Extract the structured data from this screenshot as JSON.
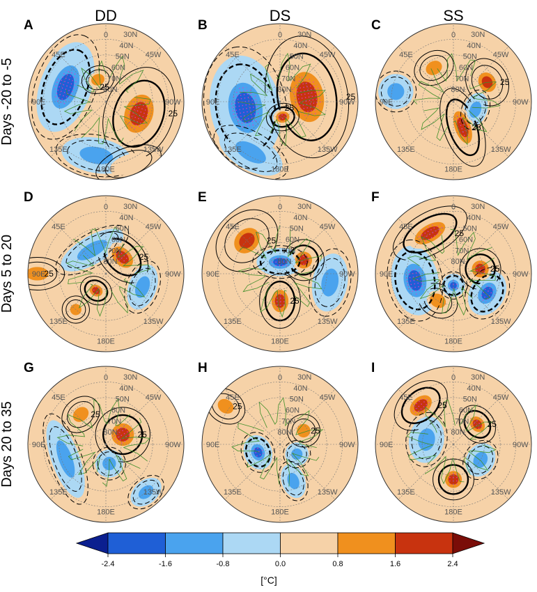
{
  "chart_data": {
    "type": "heatmap",
    "projection": "north-polar-stereographic",
    "column_titles": [
      "DD",
      "DS",
      "SS"
    ],
    "row_titles": [
      "Days -20 to -5",
      "Days 5 to 20",
      "Days 20 to 35"
    ],
    "longitude_labels": [
      "0",
      "45E",
      "90E",
      "135E",
      "180E",
      "135W",
      "90W",
      "45W"
    ],
    "latitude_labels": [
      "30N",
      "40N",
      "50N",
      "60N",
      "70N",
      "80N"
    ],
    "contour_label": "25",
    "colorbar": {
      "ticks": [
        "-2.4",
        "-1.6",
        "-0.8",
        "0.0",
        "0.8",
        "1.6",
        "2.4"
      ],
      "colors": [
        "#0b1f8f",
        "#1f5fd6",
        "#4aa3ee",
        "#acd8f4",
        "#f6d2a8",
        "#f0901e",
        "#c8330f",
        "#7a0d08"
      ],
      "unit": "[°C]"
    },
    "panels": [
      {
        "letter": "A",
        "row": 0,
        "col": 0,
        "blobs": [
          {
            "lon": 250,
            "r": 0.45,
            "rx": 0.35,
            "ry": 0.25,
            "v": 2.1
          },
          {
            "lon": 70,
            "r": 0.55,
            "rx": 0.4,
            "ry": 0.22,
            "v": -1.8
          },
          {
            "lon": 170,
            "r": 0.7,
            "rx": 0.3,
            "ry": 0.15,
            "v": -1.2
          },
          {
            "lon": 20,
            "r": 0.3,
            "rx": 0.12,
            "ry": 0.1,
            "v": 1.4
          },
          {
            "lon": 200,
            "r": 0.85,
            "rx": 0.25,
            "ry": 0.12,
            "v": 0.6
          }
        ]
      },
      {
        "letter": "B",
        "row": 0,
        "col": 1,
        "blobs": [
          {
            "lon": 280,
            "r": 0.35,
            "rx": 0.45,
            "ry": 0.3,
            "v": 2.3
          },
          {
            "lon": 100,
            "r": 0.45,
            "rx": 0.45,
            "ry": 0.3,
            "v": -2.0
          },
          {
            "lon": 190,
            "r": 0.2,
            "rx": 0.12,
            "ry": 0.1,
            "v": 1.8
          },
          {
            "lon": 150,
            "r": 0.75,
            "rx": 0.3,
            "ry": 0.15,
            "v": -0.9
          }
        ]
      },
      {
        "letter": "C",
        "row": 0,
        "col": 2,
        "blobs": [
          {
            "lon": 200,
            "r": 0.35,
            "rx": 0.14,
            "ry": 0.3,
            "v": 1.9
          },
          {
            "lon": 300,
            "r": 0.5,
            "rx": 0.18,
            "ry": 0.15,
            "v": 1.7
          },
          {
            "lon": 30,
            "r": 0.5,
            "rx": 0.15,
            "ry": 0.12,
            "v": 1.3
          },
          {
            "lon": 80,
            "r": 0.75,
            "rx": 0.15,
            "ry": 0.15,
            "v": -1.1
          },
          {
            "lon": 250,
            "r": 0.3,
            "rx": 0.15,
            "ry": 0.1,
            "v": -1.5
          }
        ]
      },
      {
        "letter": "D",
        "row": 1,
        "col": 0,
        "blobs": [
          {
            "lon": 315,
            "r": 0.3,
            "rx": 0.22,
            "ry": 0.15,
            "v": 1.9
          },
          {
            "lon": 90,
            "r": 0.88,
            "rx": 0.12,
            "ry": 0.2,
            "v": 1.6
          },
          {
            "lon": 150,
            "r": 0.25,
            "rx": 0.12,
            "ry": 0.1,
            "v": 1.8
          },
          {
            "lon": 140,
            "r": 0.6,
            "rx": 0.1,
            "ry": 0.1,
            "v": 1.5
          },
          {
            "lon": 30,
            "r": 0.35,
            "rx": 0.3,
            "ry": 0.12,
            "v": -1.3
          },
          {
            "lon": 250,
            "r": 0.5,
            "rx": 0.2,
            "ry": 0.12,
            "v": -1.0
          }
        ]
      },
      {
        "letter": "E",
        "row": 1,
        "col": 1,
        "blobs": [
          {
            "lon": 45,
            "r": 0.6,
            "rx": 0.25,
            "ry": 0.2,
            "v": 1.7
          },
          {
            "lon": 180,
            "r": 0.35,
            "rx": 0.15,
            "ry": 0.2,
            "v": 2.2
          },
          {
            "lon": 300,
            "r": 0.35,
            "rx": 0.15,
            "ry": 0.15,
            "v": 1.8
          },
          {
            "lon": 0,
            "r": 0.15,
            "rx": 0.2,
            "ry": 0.12,
            "v": -2.0
          },
          {
            "lon": 260,
            "r": 0.65,
            "rx": 0.25,
            "ry": 0.15,
            "v": -1.6
          }
        ]
      },
      {
        "letter": "F",
        "row": 1,
        "col": 2,
        "blobs": [
          {
            "lon": 30,
            "r": 0.6,
            "rx": 0.3,
            "ry": 0.15,
            "v": 1.9
          },
          {
            "lon": 280,
            "r": 0.35,
            "rx": 0.15,
            "ry": 0.15,
            "v": 2.1
          },
          {
            "lon": 150,
            "r": 0.4,
            "rx": 0.15,
            "ry": 0.12,
            "v": 1.4
          },
          {
            "lon": 100,
            "r": 0.5,
            "rx": 0.3,
            "ry": 0.2,
            "v": -2.0
          },
          {
            "lon": 240,
            "r": 0.5,
            "rx": 0.2,
            "ry": 0.15,
            "v": -1.8
          },
          {
            "lon": 180,
            "r": 0.15,
            "rx": 0.1,
            "ry": 0.1,
            "v": -2.2
          }
        ]
      },
      {
        "letter": "G",
        "row": 2,
        "col": 0,
        "blobs": [
          {
            "lon": 300,
            "r": 0.25,
            "rx": 0.2,
            "ry": 0.2,
            "v": 2.3
          },
          {
            "lon": 40,
            "r": 0.5,
            "rx": 0.15,
            "ry": 0.12,
            "v": 1.6
          },
          {
            "lon": 110,
            "r": 0.55,
            "rx": 0.35,
            "ry": 0.12,
            "v": -1.5
          },
          {
            "lon": 220,
            "r": 0.8,
            "rx": 0.15,
            "ry": 0.1,
            "v": -1.2
          },
          {
            "lon": 190,
            "r": 0.25,
            "rx": 0.12,
            "ry": 0.12,
            "v": -1.0
          }
        ]
      },
      {
        "letter": "H",
        "row": 2,
        "col": 1,
        "blobs": [
          {
            "lon": 55,
            "r": 0.85,
            "rx": 0.12,
            "ry": 0.15,
            "v": 1.6
          },
          {
            "lon": 300,
            "r": 0.35,
            "rx": 0.12,
            "ry": 0.12,
            "v": 1.5
          },
          {
            "lon": 110,
            "r": 0.3,
            "rx": 0.15,
            "ry": 0.12,
            "v": -1.8
          },
          {
            "lon": 200,
            "r": 0.5,
            "rx": 0.1,
            "ry": 0.15,
            "v": -1.4
          },
          {
            "lon": 240,
            "r": 0.25,
            "rx": 0.1,
            "ry": 0.1,
            "v": -1.2
          }
        ]
      },
      {
        "letter": "I",
        "row": 2,
        "col": 2,
        "blobs": [
          {
            "lon": 40,
            "r": 0.65,
            "rx": 0.22,
            "ry": 0.15,
            "v": 2.0
          },
          {
            "lon": 310,
            "r": 0.4,
            "rx": 0.15,
            "ry": 0.12,
            "v": 1.8
          },
          {
            "lon": 180,
            "r": 0.45,
            "rx": 0.15,
            "ry": 0.15,
            "v": 1.9
          },
          {
            "lon": 80,
            "r": 0.35,
            "rx": 0.2,
            "ry": 0.15,
            "v": -1.6
          },
          {
            "lon": 240,
            "r": 0.4,
            "rx": 0.15,
            "ry": 0.12,
            "v": -1.5
          }
        ]
      }
    ]
  }
}
